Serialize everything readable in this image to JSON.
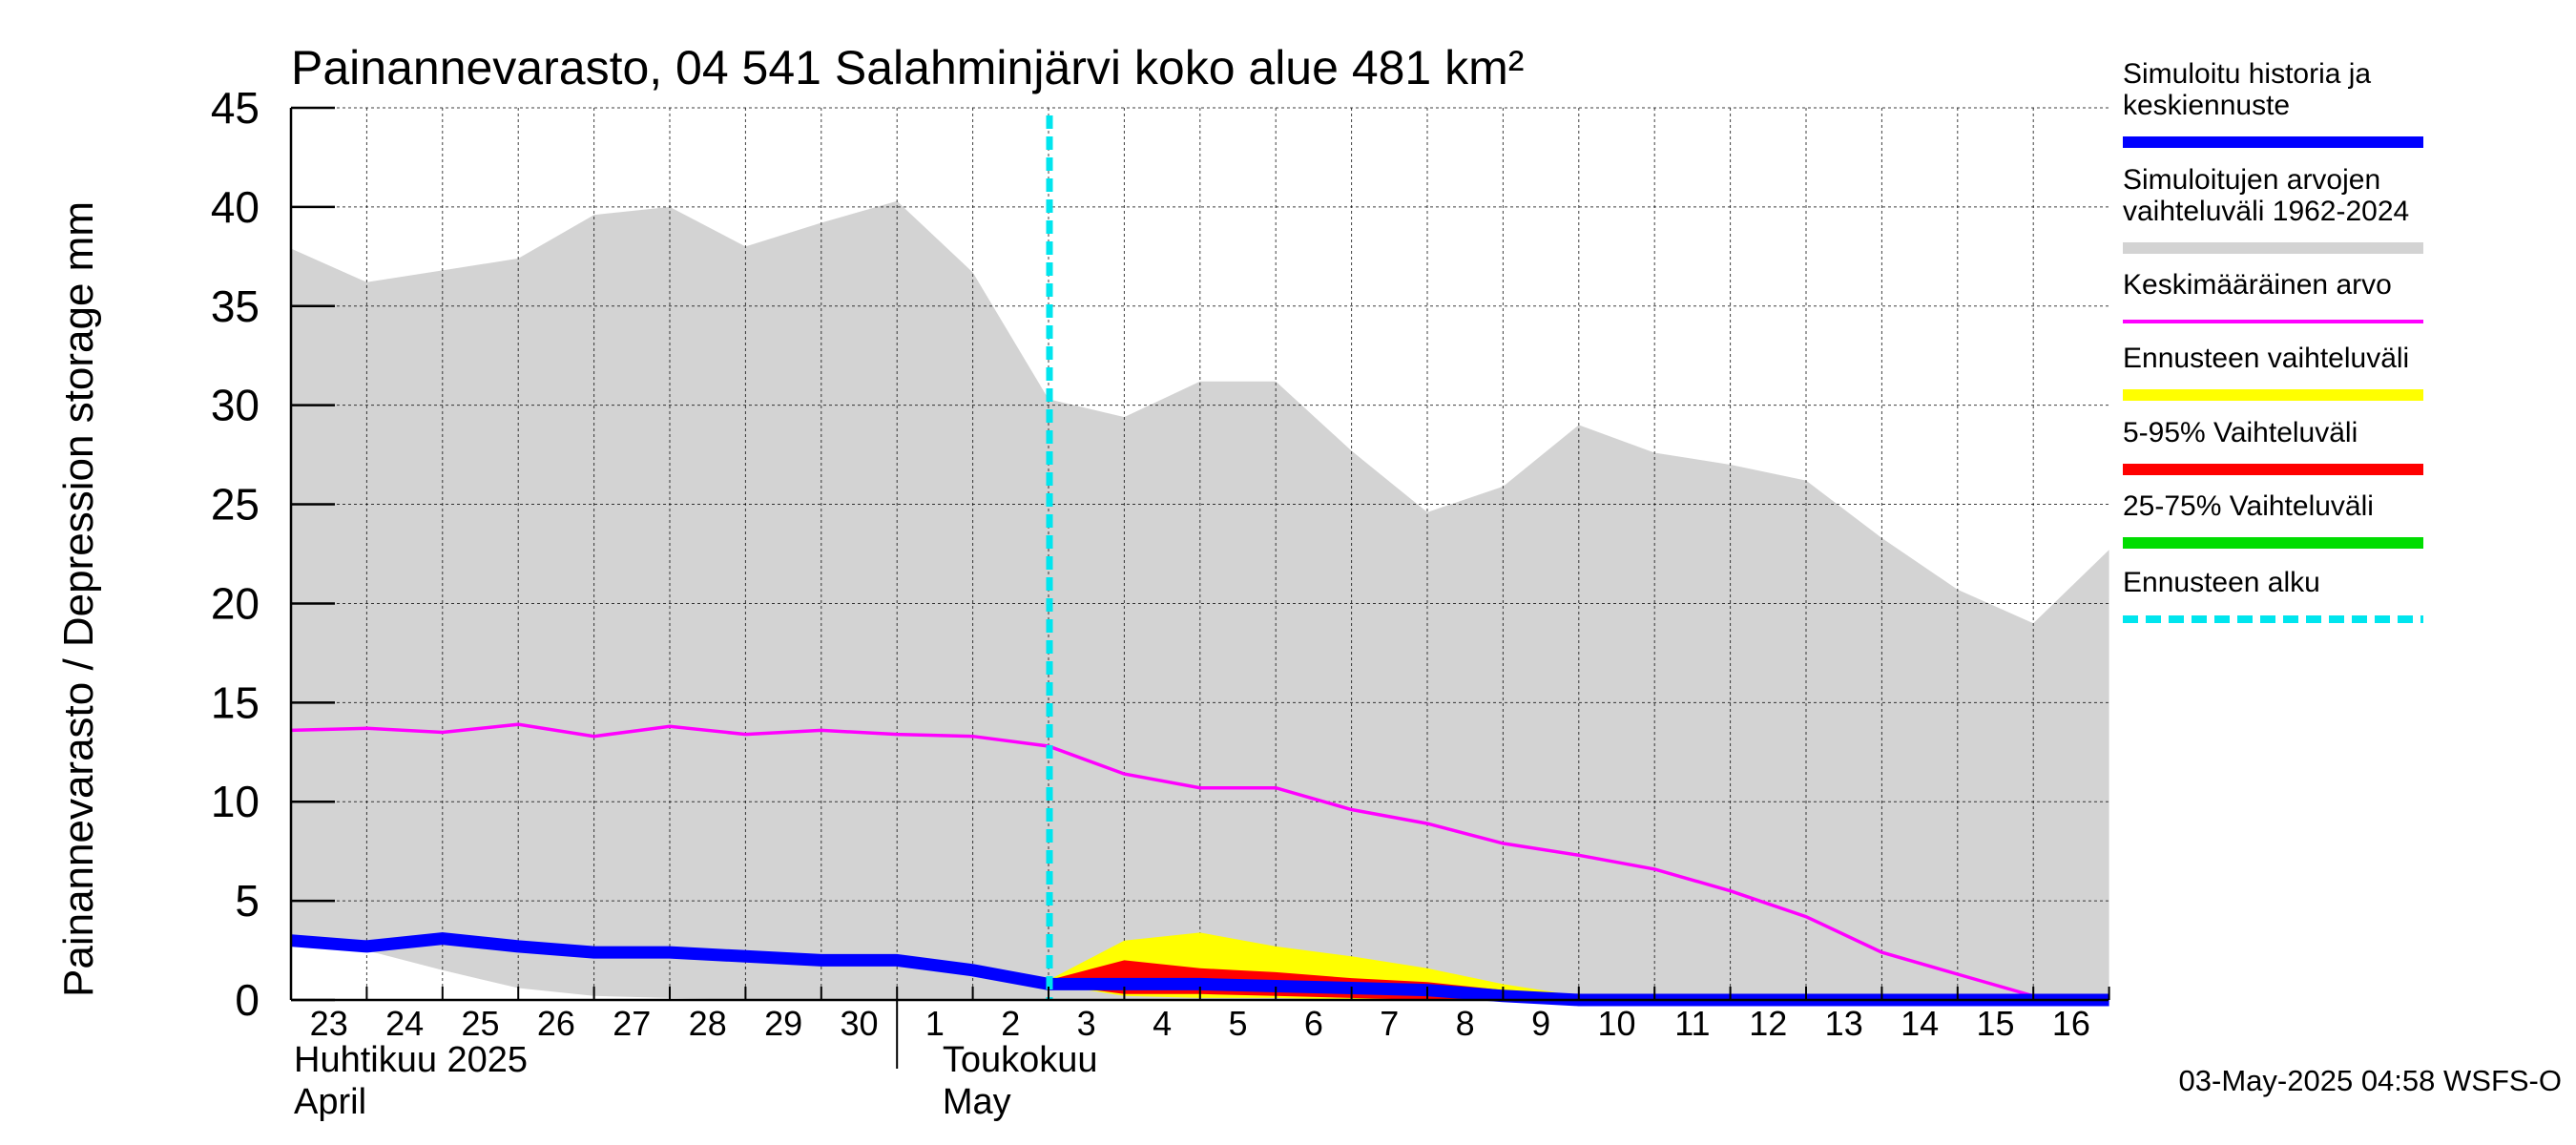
{
  "chart_data": {
    "type": "area",
    "title": "Painannevarasto, 04 541 Salahminjärvi koko alue 481 km²",
    "ylabel": "Painannevarasto / Depression storage    mm",
    "ylim": [
      0,
      45
    ],
    "yticks": [
      0,
      5,
      10,
      15,
      20,
      25,
      30,
      35,
      40,
      45
    ],
    "x_day_labels": [
      "23",
      "24",
      "25",
      "26",
      "27",
      "28",
      "29",
      "30",
      "1",
      "2",
      "3",
      "4",
      "5",
      "6",
      "7",
      "8",
      "9",
      "10",
      "11",
      "12",
      "13",
      "14",
      "15",
      "16"
    ],
    "month_labels": [
      {
        "fi": "Huhtikuu  2025",
        "en": "April"
      },
      {
        "fi": "Toukokuu",
        "en": "May"
      }
    ],
    "x_dates": [
      "2025-04-23",
      "2025-04-24",
      "2025-04-25",
      "2025-04-26",
      "2025-04-27",
      "2025-04-28",
      "2025-04-29",
      "2025-04-30",
      "2025-05-01",
      "2025-05-02",
      "2025-05-03",
      "2025-05-04",
      "2025-05-05",
      "2025-05-06",
      "2025-05-07",
      "2025-05-08",
      "2025-05-09",
      "2025-05-10",
      "2025-05-11",
      "2025-05-12",
      "2025-05-13",
      "2025-05-14",
      "2025-05-15",
      "2025-05-16",
      "2025-05-17"
    ],
    "forecast_start": "2025-05-03",
    "series": [
      {
        "name": "Simuloitujen arvojen vaihteluväli 1962-2024",
        "color": "#d3d3d3",
        "upper": [
          37.9,
          36.2,
          36.8,
          37.4,
          39.6,
          40.0,
          38.0,
          39.2,
          40.3,
          36.7,
          30.3,
          29.4,
          31.2,
          31.2,
          27.7,
          24.6,
          25.9,
          29.0,
          27.6,
          27.0,
          26.2,
          23.3,
          20.7,
          19.0,
          22.7
        ],
        "lower": [
          3.3,
          2.5,
          1.5,
          0.6,
          0.2,
          0.1,
          0.0,
          0.0,
          0.0,
          0.0,
          0.0,
          0.0,
          0.0,
          0.0,
          0.0,
          0.0,
          0.0,
          0.0,
          0.0,
          0.0,
          0.0,
          0.0,
          0.0,
          0.0,
          0.0
        ]
      },
      {
        "name": "Keskimääräinen arvo",
        "color": "#ff00ff",
        "values": [
          13.6,
          13.7,
          13.5,
          13.9,
          13.3,
          13.8,
          13.4,
          13.6,
          13.4,
          13.3,
          12.8,
          11.4,
          10.7,
          10.7,
          9.6,
          8.9,
          7.9,
          7.3,
          6.6,
          5.5,
          4.2,
          2.4,
          1.3,
          0.2,
          0.0
        ]
      },
      {
        "name": "Ennusteen vaihteluväli",
        "color": "#ffff00",
        "upper": [
          null,
          null,
          null,
          null,
          null,
          null,
          null,
          null,
          null,
          null,
          1.0,
          3.0,
          3.4,
          2.7,
          2.2,
          1.6,
          0.8,
          0.2,
          0.0,
          0.0,
          0.0,
          0.0,
          0.0,
          0.0,
          0.0
        ],
        "lower": [
          null,
          null,
          null,
          null,
          null,
          null,
          null,
          null,
          null,
          null,
          0.8,
          0.2,
          0.1,
          0.1,
          0.0,
          0.0,
          0.0,
          0.0,
          0.0,
          0.0,
          0.0,
          0.0,
          0.0,
          0.0,
          0.0
        ]
      },
      {
        "name": "5-95% Vaihteluväli",
        "color": "#ff0000",
        "upper": [
          null,
          null,
          null,
          null,
          null,
          null,
          null,
          null,
          null,
          null,
          1.0,
          2.0,
          1.6,
          1.4,
          1.1,
          0.9,
          0.5,
          0.1,
          0.0,
          0.0,
          0.0,
          0.0,
          0.0,
          0.0,
          0.0
        ],
        "lower": [
          null,
          null,
          null,
          null,
          null,
          null,
          null,
          null,
          null,
          null,
          0.8,
          0.3,
          0.3,
          0.2,
          0.1,
          0.0,
          0.0,
          0.0,
          0.0,
          0.0,
          0.0,
          0.0,
          0.0,
          0.0,
          0.0
        ]
      },
      {
        "name": "25-75% Vaihteluväli",
        "color": "#00dd00",
        "upper": [
          null,
          null,
          null,
          null,
          null,
          null,
          null,
          null,
          null,
          null,
          0.9,
          0.9,
          0.8,
          0.7,
          0.5,
          0.4,
          0.2,
          0.1,
          0.0,
          0.0,
          0.0,
          0.0,
          0.0,
          0.0,
          0.0
        ],
        "lower": [
          null,
          null,
          null,
          null,
          null,
          null,
          null,
          null,
          null,
          null,
          0.8,
          0.6,
          0.5,
          0.4,
          0.3,
          0.2,
          0.1,
          0.0,
          0.0,
          0.0,
          0.0,
          0.0,
          0.0,
          0.0,
          0.0
        ]
      },
      {
        "name": "Simuloitu historia ja keskiennuste",
        "color": "#0000ff",
        "values": [
          3.0,
          2.7,
          3.1,
          2.7,
          2.4,
          2.4,
          2.2,
          2.0,
          2.0,
          1.5,
          0.8,
          0.8,
          0.8,
          0.7,
          0.6,
          0.5,
          0.2,
          0.0,
          0.0,
          0.0,
          0.0,
          0.0,
          0.0,
          0.0,
          0.0
        ]
      }
    ],
    "legend": [
      {
        "lines": [
          "Simuloitu historia ja",
          "keskiennuste"
        ],
        "color": "#0000ff",
        "style": "thick"
      },
      {
        "lines": [
          "Simuloitujen arvojen",
          "vaihteluväli 1962-2024"
        ],
        "color": "#d3d3d3",
        "style": "thick"
      },
      {
        "lines": [
          "Keskimääräinen arvo"
        ],
        "color": "#ff00ff",
        "style": "thin"
      },
      {
        "lines": [
          "Ennusteen vaihteluväli"
        ],
        "color": "#ffff00",
        "style": "thick"
      },
      {
        "lines": [
          "5-95% Vaihteluväli"
        ],
        "color": "#ff0000",
        "style": "thick"
      },
      {
        "lines": [
          "25-75% Vaihteluväli"
        ],
        "color": "#00dd00",
        "style": "thick"
      },
      {
        "lines": [
          "Ennusteen alku"
        ],
        "color": "#00e5ee",
        "style": "dashed"
      }
    ],
    "legend_position": "right",
    "grid": true
  },
  "footer": "03-May-2025 04:58 WSFS-O"
}
